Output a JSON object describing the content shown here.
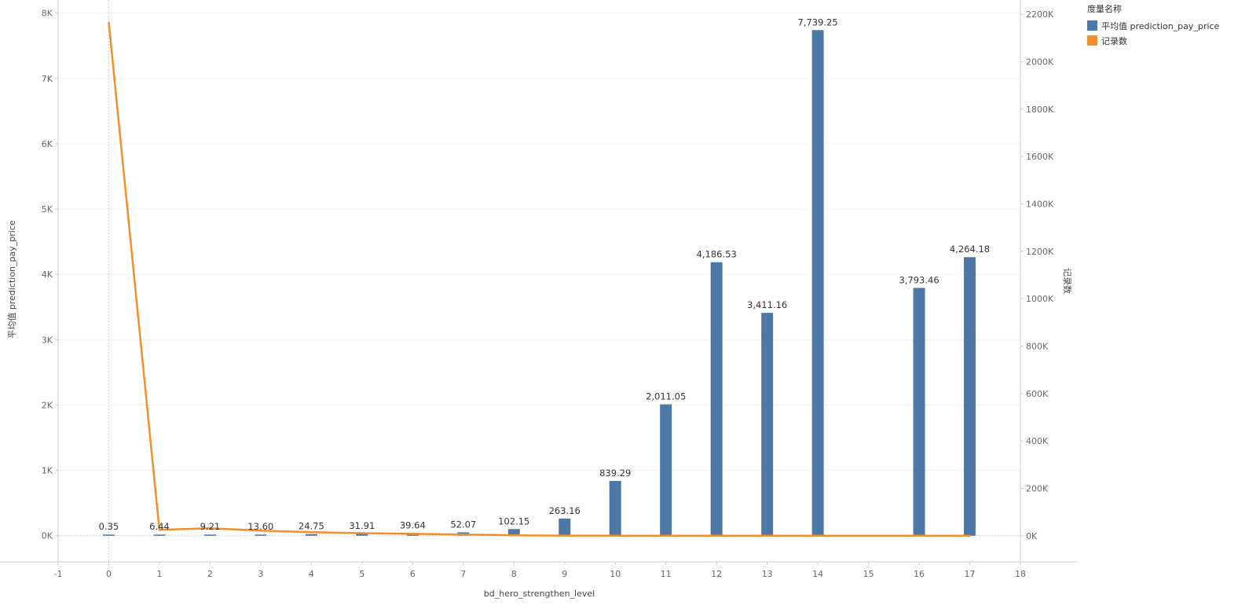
{
  "chart_data": {
    "type": "bar",
    "x_axis": {
      "label": "bd_hero_strengthen_level",
      "range": [
        -1,
        18
      ],
      "ticks": [
        "-1",
        "0",
        "1",
        "2",
        "3",
        "4",
        "5",
        "6",
        "7",
        "8",
        "9",
        "10",
        "11",
        "12",
        "13",
        "14",
        "15",
        "16",
        "17",
        "18"
      ]
    },
    "y_left": {
      "label": "平均值 prediction_pay_price",
      "range": [
        -400,
        8200
      ],
      "ticks": [
        {
          "value": 0,
          "label": "0K"
        },
        {
          "value": 1000,
          "label": "1K"
        },
        {
          "value": 2000,
          "label": "2K"
        },
        {
          "value": 3000,
          "label": "3K"
        },
        {
          "value": 4000,
          "label": "4K"
        },
        {
          "value": 5000,
          "label": "5K"
        },
        {
          "value": 6000,
          "label": "6K"
        },
        {
          "value": 7000,
          "label": "7K"
        },
        {
          "value": 8000,
          "label": "8K"
        }
      ]
    },
    "y_right": {
      "label": "记录数",
      "range": [
        -110000,
        2260000
      ],
      "ticks": [
        {
          "value": 0,
          "label": "0K"
        },
        {
          "value": 200000,
          "label": "200K"
        },
        {
          "value": 400000,
          "label": "400K"
        },
        {
          "value": 600000,
          "label": "600K"
        },
        {
          "value": 800000,
          "label": "800K"
        },
        {
          "value": 1000000,
          "label": "1000K"
        },
        {
          "value": 1200000,
          "label": "1200K"
        },
        {
          "value": 1400000,
          "label": "1400K"
        },
        {
          "value": 1600000,
          "label": "1600K"
        },
        {
          "value": 1800000,
          "label": "1800K"
        },
        {
          "value": 2000000,
          "label": "2000K"
        },
        {
          "value": 2200000,
          "label": "2200K"
        }
      ]
    },
    "legend": {
      "title": "度量名称",
      "position": "top-right"
    },
    "grid": true,
    "series": [
      {
        "name": "平均值 prediction_pay_price",
        "type": "bar",
        "color": "#4e79a7",
        "axis": "left",
        "x": [
          0,
          1,
          2,
          3,
          4,
          5,
          6,
          7,
          8,
          9,
          10,
          11,
          12,
          13,
          14,
          16,
          17
        ],
        "values": [
          0.35,
          6.44,
          9.21,
          13.6,
          24.75,
          31.91,
          39.64,
          52.07,
          102.15,
          263.16,
          839.29,
          2011.05,
          4186.53,
          3411.16,
          7739.25,
          3793.46,
          4264.18
        ],
        "labels": [
          "0.35",
          "6.44",
          "9.21",
          "13.60",
          "24.75",
          "31.91",
          "39.64",
          "52.07",
          "102.15",
          "263.16",
          "839.29",
          "2,011.05",
          "4,186.53",
          "3,411.16",
          "7,739.25",
          "3,793.46",
          "4,264.18"
        ]
      },
      {
        "name": "记录数",
        "type": "line",
        "color": "#f28e2b",
        "axis": "right",
        "x": [
          0,
          1,
          2,
          3,
          4,
          5,
          6,
          7,
          8,
          9,
          10,
          11,
          12,
          13,
          14,
          16,
          17
        ],
        "values": [
          2165000,
          25000,
          32000,
          22000,
          15000,
          11000,
          8000,
          5500,
          2000,
          800,
          300,
          120,
          60,
          30,
          10,
          5,
          3
        ]
      }
    ]
  }
}
